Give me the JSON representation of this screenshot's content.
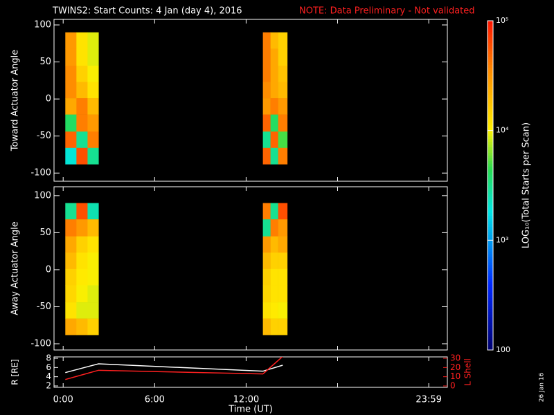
{
  "chart_data": [
    {
      "type": "heatmap",
      "title": "TWINS2: Start Counts:  4 Jan (day   4), 2016",
      "note": "NOTE: Data Preliminary - Not validated",
      "ylabel": "Toward Actuator Angle",
      "xlim": [
        -0.6,
        25.2
      ],
      "ylim": [
        -111,
        107.5
      ],
      "yticks": [
        100,
        50,
        0,
        -50,
        -100
      ],
      "y_edges": [
        90,
        68,
        45,
        23,
        1,
        -21,
        -44,
        -66,
        -88
      ],
      "blocks": [
        {
          "x_edges": [
            0.14,
            0.87,
            1.6,
            2.32
          ],
          "values": [
            [
              30000,
              12000,
              9000
            ],
            [
              30000,
              12000,
              9000
            ],
            [
              35000,
              15000,
              10000
            ],
            [
              35000,
              20000,
              12000
            ],
            [
              25000,
              40000,
              20000
            ],
            [
              4000,
              40000,
              30000
            ],
            [
              50000,
              3000,
              40000
            ],
            [
              2000,
              60000,
              3000
            ]
          ]
        },
        {
          "x_edges": [
            13.1,
            13.6,
            14.1,
            14.7
          ],
          "values": [
            [
              40000,
              20000,
              15000
            ],
            [
              40000,
              25000,
              15000
            ],
            [
              40000,
              25000,
              18000
            ],
            [
              35000,
              25000,
              20000
            ],
            [
              30000,
              40000,
              30000
            ],
            [
              50000,
              4000,
              40000
            ],
            [
              3000,
              50000,
              5000
            ],
            [
              50000,
              3000,
              40000
            ]
          ]
        }
      ]
    },
    {
      "type": "heatmap",
      "ylabel": "Away Actuator Angle",
      "xlim": [
        -0.6,
        25.2
      ],
      "ylim": [
        -108.4,
        112
      ],
      "yticks": [
        100,
        50,
        0,
        -50,
        -100
      ],
      "xticks": [
        0,
        6,
        12,
        18,
        {
          "value": 23.98,
          "label": "23:59"
        }
      ],
      "xtick_labels": [
        "0:00",
        "6:00",
        "12:00"
      ],
      "y_edges": [
        90,
        68,
        45,
        23,
        1,
        -21,
        -44,
        -66,
        -88
      ],
      "blocks": [
        {
          "x_edges": [
            0.14,
            0.87,
            1.6,
            2.32
          ],
          "values": [
            [
              3000,
              60000,
              2500
            ],
            [
              40000,
              30000,
              20000
            ],
            [
              25000,
              15000,
              12000
            ],
            [
              20000,
              12000,
              10000
            ],
            [
              15000,
              11000,
              10000
            ],
            [
              14000,
              10000,
              9000
            ],
            [
              12000,
              9000,
              9000
            ],
            [
              25000,
              20000,
              15000
            ]
          ]
        },
        {
          "x_edges": [
            13.1,
            13.6,
            14.1,
            14.7
          ],
          "values": [
            [
              40000,
              3000,
              60000
            ],
            [
              3000,
              40000,
              30000
            ],
            [
              30000,
              20000,
              25000
            ],
            [
              20000,
              15000,
              15000
            ],
            [
              15000,
              12000,
              12000
            ],
            [
              14000,
              12000,
              12000
            ],
            [
              12000,
              11000,
              10000
            ],
            [
              20000,
              15000,
              15000
            ]
          ]
        }
      ]
    },
    {
      "type": "line",
      "xlabel": "Time (UT)",
      "ylabel": "R [RE]",
      "y2label": "L Shell",
      "side_note": "26 Jan 16",
      "xlim": [
        -0.6,
        25.2
      ],
      "ylim": [
        2,
        8
      ],
      "yticks": [
        2,
        4,
        6,
        8
      ],
      "y2lim": [
        0,
        30
      ],
      "y2ticks": [
        0,
        10,
        20,
        30
      ],
      "x": [
        0.14,
        2.32,
        13.1,
        14.4
      ],
      "series": [
        {
          "name": "R",
          "color": "#ffffff",
          "values": [
            4.9,
            6.8,
            5.2,
            6.5
          ]
        },
        {
          "name": "L Shell",
          "color": "#ff2020",
          "axis": "y2",
          "values": [
            7,
            17,
            13,
            32
          ]
        }
      ]
    },
    {
      "type": "colorbar",
      "label": "LOG₁₀(Total Starts per Scan)",
      "clim": [
        100,
        100000
      ],
      "log": true,
      "ticks": [
        100,
        {
          "value": 1000,
          "label": "10³"
        },
        {
          "value": 10000,
          "label": "10⁴"
        },
        {
          "value": 100000,
          "label": "10⁵"
        }
      ]
    }
  ]
}
